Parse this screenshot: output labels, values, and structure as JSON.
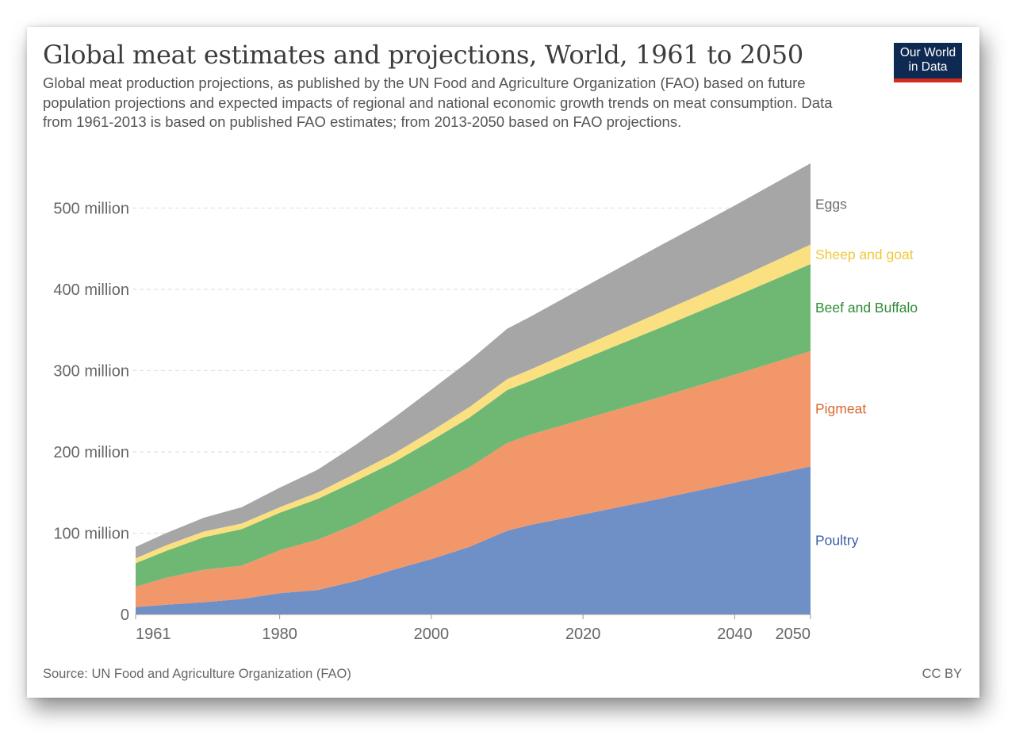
{
  "title": "Global meat estimates and projections, World, 1961 to 2050",
  "subtitle": "Global meat production projections, as published by the UN Food and Agriculture Organization (FAO) based on future population projections and expected impacts of regional and national economic growth trends on meat consumption. Data from 1961-2013 is based on published FAO estimates; from 2013-2050 based on FAO projections.",
  "logo": {
    "line1": "Our World",
    "line2": "in Data"
  },
  "source": "Source: UN Food and Agriculture Organization (FAO)",
  "license": "CC BY",
  "chart_data": {
    "type": "area",
    "stacked": true,
    "x": [
      1961,
      1965,
      1970,
      1975,
      1980,
      1985,
      1990,
      1995,
      2000,
      2005,
      2010,
      2013,
      2020,
      2030,
      2040,
      2050
    ],
    "xlim": [
      1961,
      2050
    ],
    "ylim": [
      0,
      555000000
    ],
    "x_ticks": [
      "1961",
      "1980",
      "2000",
      "2020",
      "2040",
      "2050"
    ],
    "y_ticks": [
      {
        "value": 0,
        "label": "0"
      },
      {
        "value": 100000000,
        "label": "100 million"
      },
      {
        "value": 200000000,
        "label": "200 million"
      },
      {
        "value": 300000000,
        "label": "300 million"
      },
      {
        "value": 400000000,
        "label": "400 million"
      },
      {
        "value": 500000000,
        "label": "500 million"
      }
    ],
    "grid": "horizontal dashed",
    "legend": "labels at right end of areas",
    "series": [
      {
        "name": "Poultry",
        "color": "#6e90c7",
        "label_color": "#3a5ea8",
        "values": [
          9000000,
          12000000,
          15000000,
          19000000,
          26000000,
          30000000,
          41000000,
          55000000,
          68000000,
          83000000,
          103000000,
          110000000,
          123000000,
          142000000,
          162000000,
          182000000
        ]
      },
      {
        "name": "Pigmeat",
        "color": "#f2976a",
        "label_color": "#d96a32",
        "values": [
          25000000,
          33000000,
          40000000,
          41000000,
          53000000,
          62000000,
          70000000,
          79000000,
          89000000,
          98000000,
          108000000,
          111000000,
          117000000,
          125000000,
          133000000,
          142000000
        ]
      },
      {
        "name": "Beef and Buffalo",
        "color": "#6fb873",
        "label_color": "#2f8a36",
        "values": [
          29000000,
          33000000,
          40000000,
          45000000,
          46000000,
          50000000,
          53000000,
          53000000,
          57000000,
          61000000,
          65000000,
          66000000,
          74000000,
          85000000,
          96000000,
          107000000
        ]
      },
      {
        "name": "Sheep and goat",
        "color": "#fbe082",
        "label_color": "#f0c93a",
        "values": [
          6000000,
          7000000,
          7000000,
          7000000,
          7000000,
          8000000,
          9500000,
          10500000,
          11500000,
          13000000,
          13500000,
          14000000,
          16000000,
          19000000,
          21000000,
          24000000
        ]
      },
      {
        "name": "Eggs",
        "color": "#a6a6a6",
        "label_color": "#6e6e6e",
        "values": [
          14000000,
          15000000,
          17000000,
          20000000,
          24000000,
          28000000,
          35000000,
          44000000,
          51000000,
          57000000,
          62000000,
          65000000,
          72000000,
          82000000,
          91000000,
          100000000
        ]
      }
    ]
  }
}
